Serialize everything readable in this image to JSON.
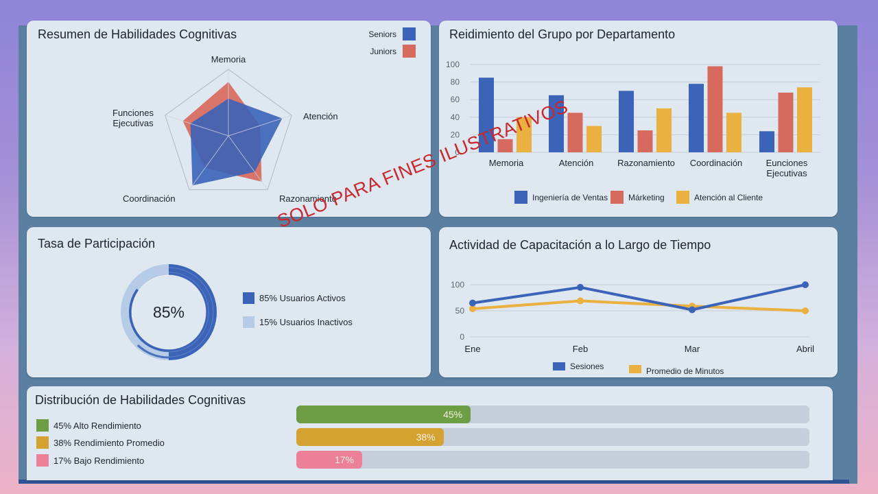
{
  "colors": {
    "blue": "#3b63b8",
    "red": "#d76a5e",
    "yellow": "#eab040",
    "light_blue": "#b5cbe6",
    "green": "#6d9e45",
    "gold": "#d4a231",
    "pink": "#ec8099",
    "watermark": "#c8282e"
  },
  "watermark": "SOLO PARA FINES ILUSTRATIVOS",
  "radar_card": {
    "title": "Resumen de Habilidades Cognitivas",
    "legend": [
      {
        "label": "Seniors",
        "color": "#3b63b8"
      },
      {
        "label": "Juniors",
        "color": "#d76a5e"
      }
    ],
    "axis_labels": [
      "Memoria",
      "Atención",
      "Razonamiento",
      "Coordinación",
      "Funciones",
      "Ejecutivas"
    ]
  },
  "bar_card": {
    "title": "Reidimiento del Grupo por Departamento",
    "yticks": [
      "100",
      "80",
      "60",
      "40",
      "20",
      "0"
    ],
    "categories": [
      "Memoria",
      "Atención",
      "Razonamiento",
      "Coordinación",
      "Eunciones",
      "Ejecutivas"
    ],
    "legend": [
      {
        "label": "Ingeniería de Ventas",
        "color": "#3b63b8"
      },
      {
        "label": "Márketing",
        "color": "#d76a5e"
      },
      {
        "label": "Atención al Cliente",
        "color": "#eab040"
      }
    ]
  },
  "donut_card": {
    "title": "Tasa de Participación",
    "center_value": "85%",
    "legend": [
      {
        "label": "85% Usuarios Activos",
        "color": "#3b63b8"
      },
      {
        "label": "15% Usuarios Inactivos",
        "color": "#b5cbe6"
      }
    ]
  },
  "line_card": {
    "title": "Actividad de Capacitación a lo Largo de Tiempo",
    "yticks": [
      "100",
      "50",
      "0"
    ],
    "xticks": [
      "Ene",
      "Feb",
      "Mar",
      "Abril"
    ],
    "legend": [
      {
        "label": "Sesiones",
        "color": "#3b63b8"
      },
      {
        "label": "Promedio de Minutos",
        "color": "#eab040"
      }
    ]
  },
  "dist_card": {
    "title": "Distribución de Habilidades Cognitivas",
    "items": [
      {
        "label": "45% Alto Rendimiento",
        "value_label": "45%",
        "value": 45,
        "color": "#6d9e45"
      },
      {
        "label": "38% Rendimiento Promedio",
        "value_label": "38%",
        "value": 38,
        "color": "#d4a231"
      },
      {
        "label": "17% Bajo Rendimiento",
        "value_label": "17%",
        "value": 17,
        "color": "#ec8099"
      }
    ]
  },
  "chart_data": [
    {
      "type": "radar",
      "title": "Resumen de Habilidades Cognitivas",
      "categories": [
        "Memoria",
        "Atención",
        "Razonamiento",
        "Coordinación",
        "Funciones Ejecutivas"
      ],
      "series": [
        {
          "name": "Seniors",
          "values": [
            56,
            85,
            67,
            92,
            60
          ]
        },
        {
          "name": "Juniors",
          "values": [
            81,
            50,
            85,
            60,
            72
          ]
        }
      ],
      "range": [
        0,
        100
      ],
      "legend_position": "top-right"
    },
    {
      "type": "bar",
      "title": "Reidimiento del Grupo por Departamento",
      "categories": [
        "Memoria",
        "Atención",
        "Razonamiento",
        "Coordinación",
        "Eunciones Ejecutivas"
      ],
      "series": [
        {
          "name": "Ingeniería de Ventas",
          "values": [
            85,
            65,
            70,
            78,
            24
          ]
        },
        {
          "name": "Márketing",
          "values": [
            15,
            45,
            25,
            98,
            68
          ]
        },
        {
          "name": "Atención al Cliente",
          "values": [
            40,
            30,
            50,
            45,
            74
          ]
        }
      ],
      "xlabel": "",
      "ylabel": "",
      "ylim": [
        0,
        100
      ],
      "yticks": [
        0,
        20,
        40,
        60,
        80,
        100
      ],
      "grid": true,
      "legend_position": "bottom"
    },
    {
      "type": "pie",
      "title": "Tasa de Participación",
      "categories": [
        "Usuarios Activos",
        "Usuarios Inactivos"
      ],
      "values": [
        85,
        15
      ],
      "donut": true,
      "center_label": "85%",
      "legend_position": "right"
    },
    {
      "type": "line",
      "title": "Actividad de Capacitación a lo Largo de Tiempo",
      "x": [
        "Ene",
        "Feb",
        "Mar",
        "Abril"
      ],
      "series": [
        {
          "name": "Sesiones",
          "values": [
            65,
            95,
            52,
            100
          ]
        },
        {
          "name": "Promedio de Minutos",
          "values": [
            54,
            69,
            59,
            50
          ]
        }
      ],
      "ylim": [
        0,
        100
      ],
      "yticks": [
        0,
        50,
        100
      ],
      "grid": true,
      "legend_position": "bottom"
    },
    {
      "type": "bar",
      "orientation": "horizontal",
      "title": "Distribución de Habilidades Cognitivas",
      "categories": [
        "Alto Rendimiento",
        "Rendimiento Promedio",
        "Bajo Rendimiento"
      ],
      "values": [
        45,
        38,
        17
      ],
      "xlim": [
        0,
        100
      ],
      "legend_position": "left"
    }
  ]
}
